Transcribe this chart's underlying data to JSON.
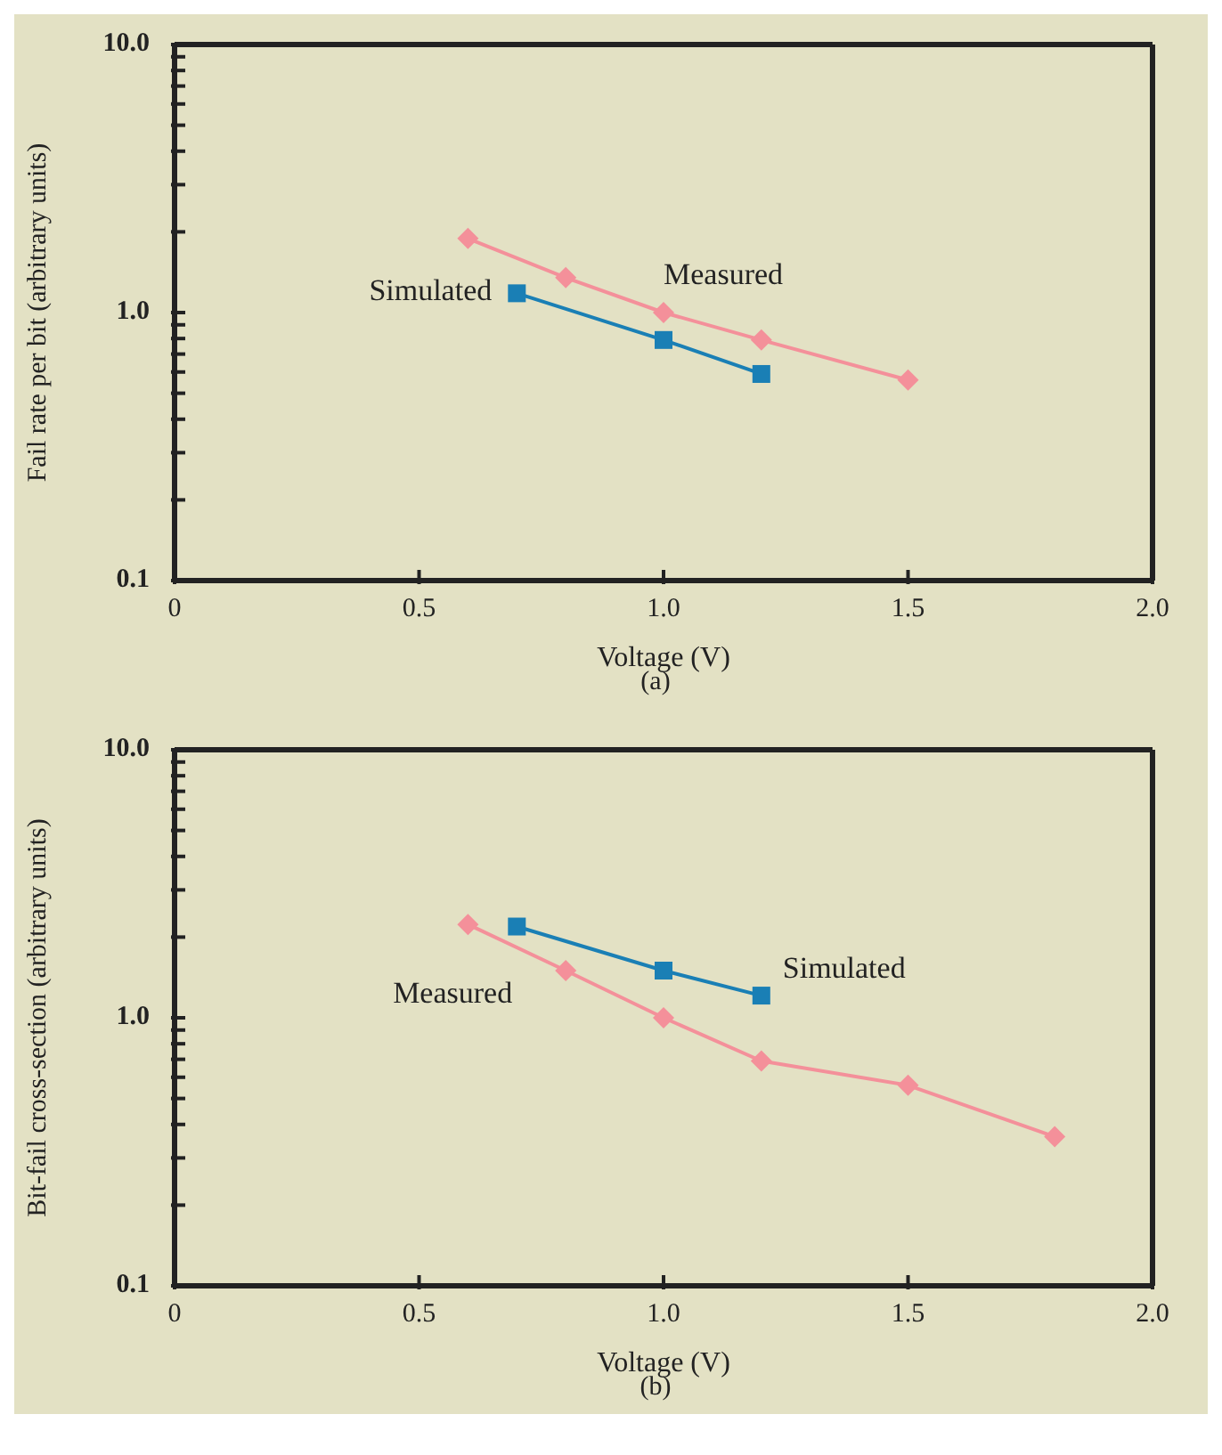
{
  "chart_data": [
    {
      "type": "line",
      "title": "(a)",
      "xlabel": "Voltage  (V)",
      "ylabel": "Fail rate per bit  (arbitrary units)",
      "log": "y",
      "line_style": "solid",
      "xlim": [
        0,
        2
      ],
      "ylim": [
        0.1,
        10
      ],
      "xticks": [
        0,
        {
          "value": 0.5,
          "label": "0.5"
        },
        {
          "value": 1,
          "label": "1.0"
        },
        {
          "value": 1.5,
          "label": "1.5"
        },
        {
          "value": 2,
          "label": "2.0"
        }
      ],
      "yticks": [
        {
          "value": 0.1,
          "label": "0.1"
        },
        {
          "value": 0.2,
          "label": null
        },
        {
          "value": 0.3,
          "label": null
        },
        {
          "value": 0.4,
          "label": null
        },
        {
          "value": 0.5,
          "label": null
        },
        {
          "value": 0.6,
          "label": null
        },
        {
          "value": 0.7,
          "label": null
        },
        {
          "value": 0.8,
          "label": null
        },
        {
          "value": 0.9,
          "label": null
        },
        {
          "value": 1,
          "label": "1.0"
        },
        {
          "value": 2,
          "label": null
        },
        {
          "value": 3,
          "label": null
        },
        {
          "value": 4,
          "label": null
        },
        {
          "value": 5,
          "label": null
        },
        {
          "value": 6,
          "label": null
        },
        {
          "value": 7,
          "label": null
        },
        {
          "value": 8,
          "label": null
        },
        {
          "value": 9,
          "label": null
        },
        {
          "value": 10,
          "label": "10.0"
        }
      ],
      "series": [
        {
          "name": "Measured",
          "color": "#f4909a",
          "marker": "diamond",
          "x": [
            0.6,
            0.8,
            1.0,
            1.2,
            1.5
          ],
          "values": [
            1.89,
            1.35,
            1.0,
            0.79,
            0.56
          ]
        },
        {
          "name": "Simulated",
          "color": "#1a7fb5",
          "marker": "square",
          "x": [
            0.7,
            1.0,
            1.2
          ],
          "values": [
            1.18,
            0.79,
            0.59
          ]
        }
      ]
    },
    {
      "type": "line",
      "title": "(b)",
      "xlabel": "Voltage  (V)",
      "ylabel": "Bit-fail cross-section  (arbitrary units)",
      "log": "y",
      "line_style": "solid",
      "xlim": [
        0,
        2
      ],
      "ylim": [
        0.1,
        10
      ],
      "xticks": [
        0,
        {
          "value": 0.5,
          "label": "0.5"
        },
        {
          "value": 1,
          "label": "1.0"
        },
        {
          "value": 1.5,
          "label": "1.5"
        },
        {
          "value": 2,
          "label": "2.0"
        }
      ],
      "yticks": [
        {
          "value": 0.1,
          "label": "0.1"
        },
        {
          "value": 0.2,
          "label": null
        },
        {
          "value": 0.3,
          "label": null
        },
        {
          "value": 0.4,
          "label": null
        },
        {
          "value": 0.5,
          "label": null
        },
        {
          "value": 0.6,
          "label": null
        },
        {
          "value": 0.7,
          "label": null
        },
        {
          "value": 0.8,
          "label": null
        },
        {
          "value": 0.9,
          "label": null
        },
        {
          "value": 1,
          "label": "1.0"
        },
        {
          "value": 2,
          "label": null
        },
        {
          "value": 3,
          "label": null
        },
        {
          "value": 4,
          "label": null
        },
        {
          "value": 5,
          "label": null
        },
        {
          "value": 6,
          "label": null
        },
        {
          "value": 7,
          "label": null
        },
        {
          "value": 8,
          "label": null
        },
        {
          "value": 9,
          "label": null
        },
        {
          "value": 10,
          "label": "10.0"
        }
      ],
      "series": [
        {
          "name": "Measured",
          "color": "#f4909a",
          "marker": "diamond",
          "x": [
            0.6,
            0.8,
            1.0,
            1.2,
            1.5,
            1.8
          ],
          "values": [
            2.23,
            1.5,
            1.0,
            0.69,
            0.56,
            0.36
          ]
        },
        {
          "name": "Simulated",
          "color": "#1a7fb5",
          "marker": "square",
          "x": [
            0.7,
            1.0,
            1.2
          ],
          "values": [
            2.19,
            1.5,
            1.21
          ]
        }
      ]
    }
  ]
}
